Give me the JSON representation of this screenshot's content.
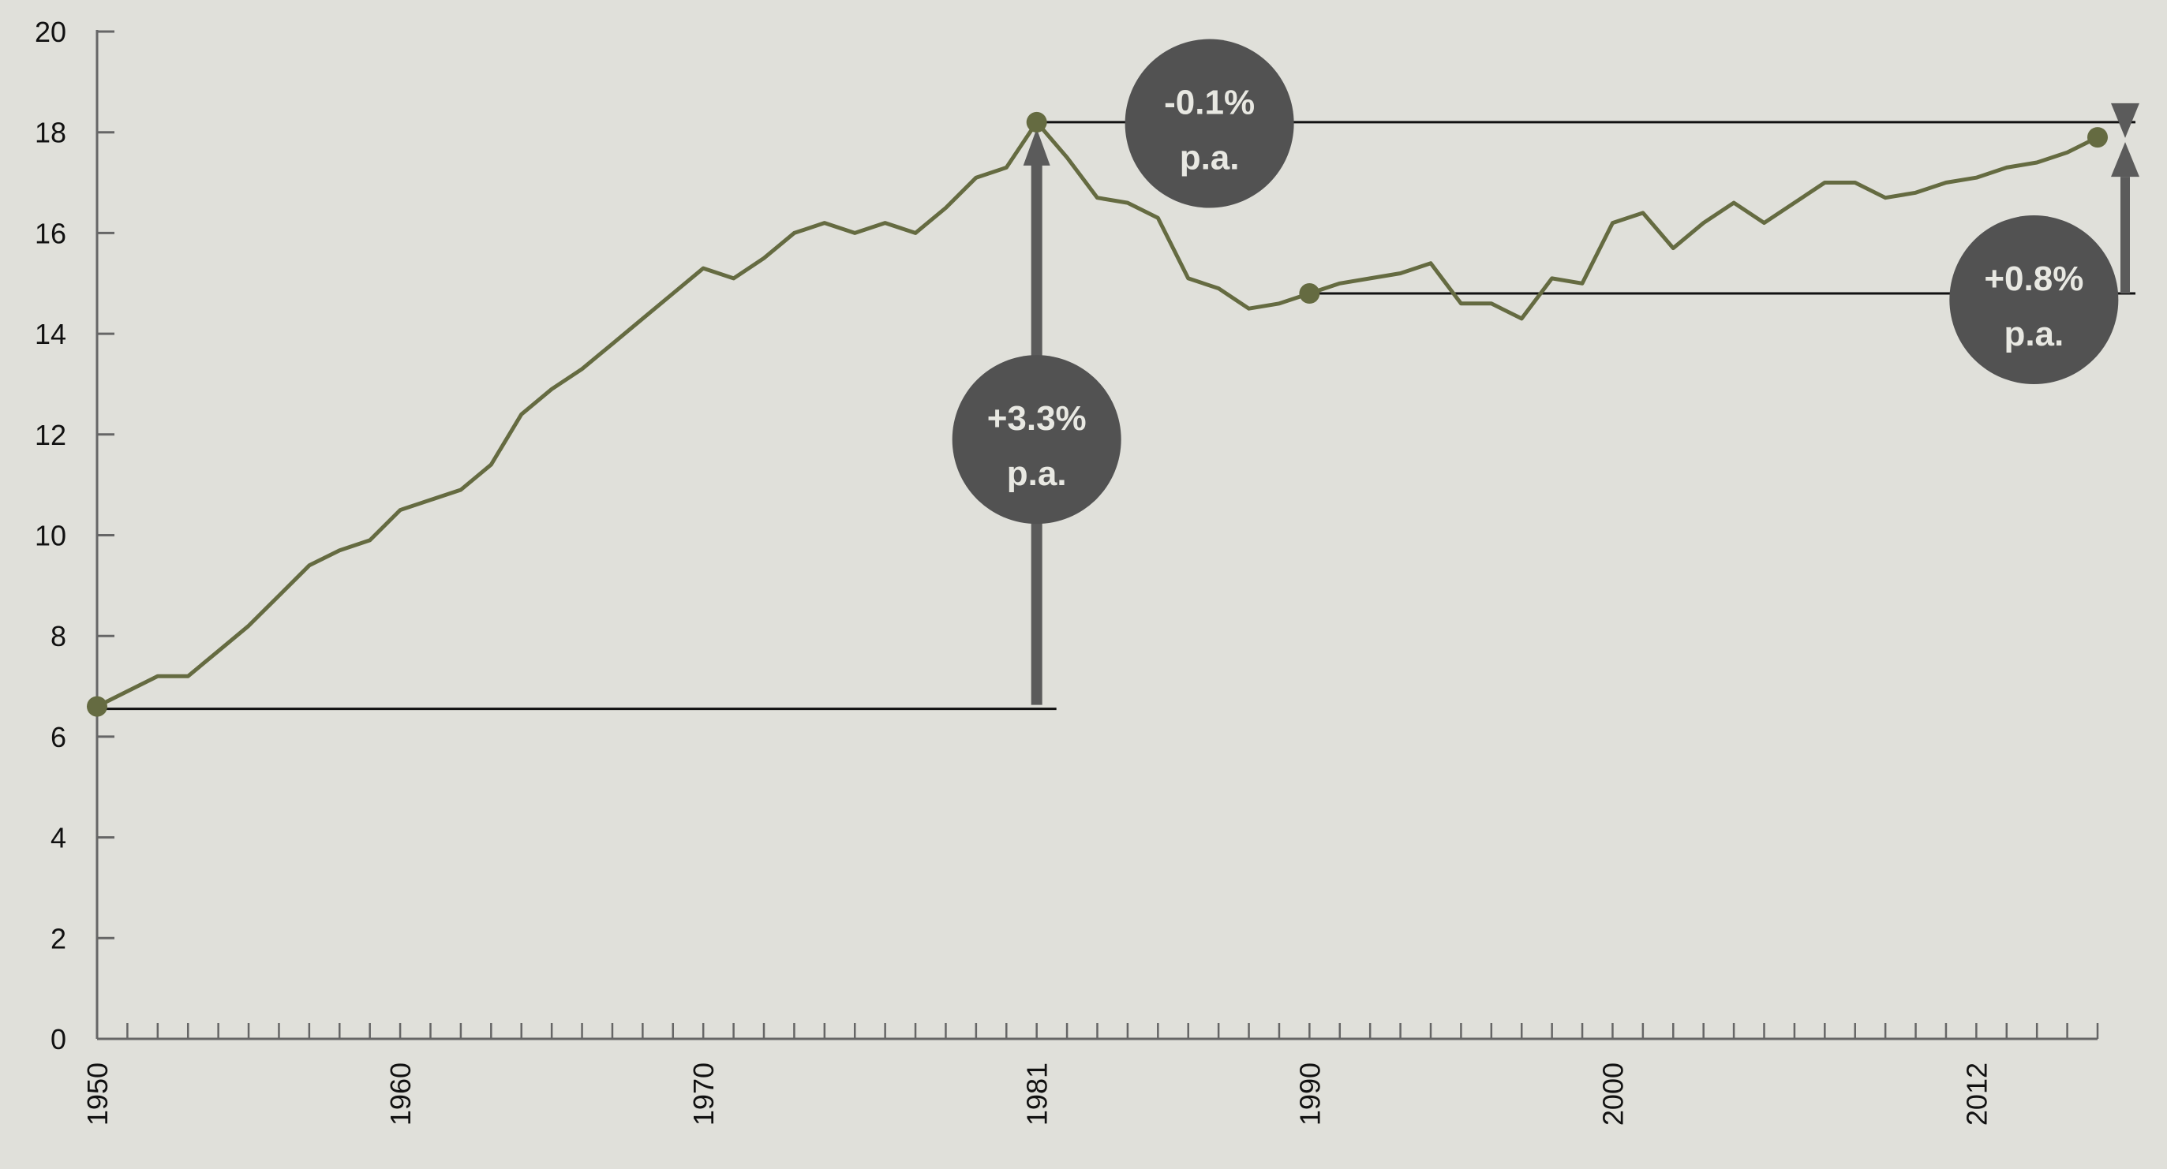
{
  "chart_data": {
    "type": "line",
    "title": "",
    "xlabel": "",
    "ylabel": "",
    "xlim": [
      1950,
      2016
    ],
    "ylim": [
      0,
      20
    ],
    "y_ticks": [
      0,
      2,
      4,
      6,
      8,
      10,
      12,
      14,
      16,
      18,
      20
    ],
    "x_tick_labels": [
      1950,
      1960,
      1970,
      1981,
      1990,
      2000,
      2012
    ],
    "grid": false,
    "series": [
      {
        "x": [
          1950,
          1951,
          1952,
          1953,
          1954,
          1955,
          1956,
          1957,
          1958,
          1959,
          1960,
          1961,
          1962,
          1963,
          1964,
          1965,
          1966,
          1967,
          1968,
          1969,
          1970,
          1971,
          1972,
          1973,
          1974,
          1975,
          1976,
          1977,
          1978,
          1979,
          1980,
          1981,
          1982,
          1983,
          1984,
          1985,
          1986,
          1987,
          1988,
          1989,
          1990,
          1991,
          1992,
          1993,
          1994,
          1995,
          1996,
          1997,
          1998,
          1999,
          2000,
          2001,
          2002,
          2003,
          2004,
          2005,
          2006,
          2007,
          2008,
          2009,
          2010,
          2011,
          2012,
          2013,
          2014,
          2015,
          2016
        ],
        "y": [
          6.6,
          6.9,
          7.2,
          7.2,
          7.7,
          8.2,
          8.8,
          9.4,
          9.7,
          9.9,
          10.5,
          10.7,
          10.9,
          11.4,
          12.4,
          12.9,
          13.3,
          13.8,
          14.3,
          14.8,
          15.3,
          15.1,
          15.5,
          16.0,
          16.2,
          16.0,
          16.2,
          16.0,
          16.5,
          17.1,
          17.3,
          18.2,
          17.5,
          16.7,
          16.6,
          16.3,
          15.1,
          14.9,
          14.5,
          14.6,
          14.8,
          15.0,
          15.1,
          15.2,
          15.4,
          14.6,
          14.6,
          14.3,
          15.1,
          15.0,
          16.2,
          16.4,
          15.7,
          16.2,
          16.6,
          16.2,
          16.6,
          17.0,
          17.0,
          16.7,
          16.8,
          17.0,
          17.1,
          17.3,
          17.4,
          17.6,
          17.9
        ]
      }
    ],
    "markers": [
      {
        "x": 1950,
        "y": 6.6
      },
      {
        "x": 1981,
        "y": 18.2
      },
      {
        "x": 1990,
        "y": 14.8
      },
      {
        "x": 2016,
        "y": 17.9
      }
    ],
    "annotations": [
      {
        "line1": "+3.3%",
        "line2": "p.a.",
        "from_year": 1950,
        "to_year": 1981
      },
      {
        "line1": "-0.1%",
        "line2": "p.a.",
        "from_year": 1981,
        "to_year": 2016
      },
      {
        "line1": "+0.8%",
        "line2": "p.a.",
        "from_year": 1990,
        "to_year": 2016
      }
    ],
    "colors": {
      "background": "#e0e0da",
      "series": "#656b41",
      "arrow": "#5b5b5b",
      "badge": "#525252",
      "badge_text": "#e8e8e2",
      "axis": "#666666",
      "reference_line": "#111111"
    }
  }
}
